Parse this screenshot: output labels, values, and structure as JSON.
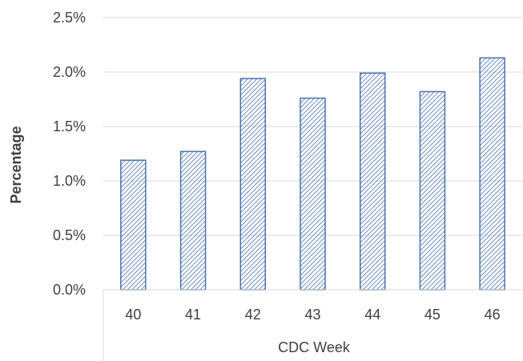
{
  "chart_data": {
    "type": "bar",
    "categories": [
      "40",
      "41",
      "42",
      "43",
      "44",
      "45",
      "46"
    ],
    "values": [
      1.19,
      1.27,
      1.94,
      1.76,
      1.99,
      1.82,
      2.13
    ],
    "xlabel": "CDC Week",
    "ylabel": "Percentage",
    "ylim": [
      0,
      2.5
    ],
    "yticks": [
      "0.0%",
      "0.5%",
      "1.0%",
      "1.5%",
      "2.0%",
      "2.5%"
    ],
    "grid": true,
    "bar_fill": "diagonal-hatch",
    "colors": {
      "bar_outline": "#4a72b0",
      "hatch": "#4a72b0",
      "grid": "#d9d9d9",
      "text": "#404040"
    }
  }
}
